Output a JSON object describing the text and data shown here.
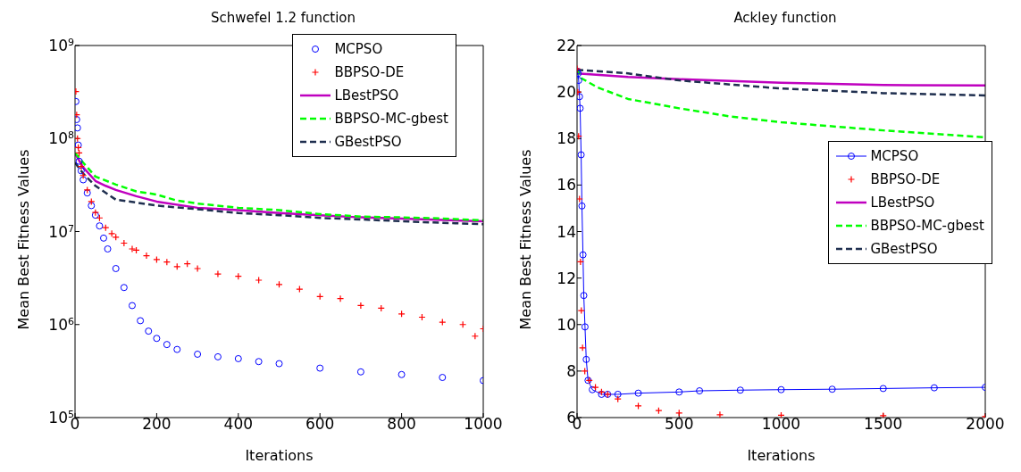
{
  "chart_data": [
    {
      "type": "line",
      "title": "Schwefel 1.2 function",
      "xlabel": "Iterations",
      "ylabel": "Mean Best Fitness Values",
      "log": "y",
      "xlim": [
        0,
        1000
      ],
      "xticks": [
        0,
        200,
        400,
        600,
        800,
        1000
      ],
      "ylim": [
        100000,
        1000000000
      ],
      "yticks": [
        {
          "value": 100000,
          "label": "10$^{5}$"
        },
        {
          "value": 1000000,
          "label": "10$^{6}$"
        },
        {
          "value": 10000000,
          "label": "10$^{7}$"
        },
        {
          "value": 100000000,
          "label": "10$^{8}$"
        },
        {
          "value": 1000000000,
          "label": "10$^{9}$"
        }
      ],
      "legend": "top right",
      "series": [
        {
          "name": "MCPSO",
          "type": "scatter",
          "marker": "circle",
          "color": "#0000ff",
          "x": [
            2,
            4,
            6,
            8,
            10,
            15,
            20,
            30,
            40,
            50,
            60,
            70,
            80,
            100,
            120,
            140,
            160,
            180,
            200,
            225,
            250,
            300,
            350,
            400,
            450,
            500,
            600,
            700,
            800,
            900,
            1000
          ],
          "values": [
            250000000,
            160000000,
            130000000,
            85000000,
            57000000,
            45000000,
            36000000,
            26000000,
            19000000,
            15000000,
            11500000,
            8500000,
            6500000,
            4000000,
            2500000,
            1600000,
            1100000,
            850000,
            710000,
            610000,
            540000,
            480000,
            450000,
            430000,
            400000,
            380000,
            340000,
            310000,
            290000,
            270000,
            250000
          ]
        },
        {
          "name": "BBPSO-DE",
          "type": "scatter",
          "marker": "cross",
          "color": "#ff0000",
          "x": [
            2,
            4,
            6,
            8,
            10,
            15,
            20,
            30,
            40,
            50,
            60,
            75,
            90,
            100,
            120,
            140,
            150,
            175,
            200,
            225,
            250,
            275,
            300,
            350,
            400,
            450,
            500,
            550,
            600,
            650,
            700,
            750,
            800,
            850,
            900,
            950,
            980,
            1000
          ],
          "values": [
            320000000,
            180000000,
            100000000,
            80000000,
            70000000,
            50000000,
            40000000,
            28000000,
            21000000,
            16000000,
            14000000,
            11000000,
            9500000,
            8700000,
            7500000,
            6500000,
            6300000,
            5500000,
            5000000,
            4700000,
            4200000,
            4500000,
            4000000,
            3500000,
            3300000,
            3000000,
            2700000,
            2400000,
            2000000,
            1900000,
            1600000,
            1500000,
            1300000,
            1200000,
            1060000,
            1000000,
            750000,
            900000
          ]
        },
        {
          "name": "LBestPSO",
          "type": "line",
          "line_style": "solid",
          "color": "#bf00bf",
          "x": [
            0,
            20,
            50,
            75,
            100,
            150,
            200,
            300,
            400,
            500,
            600,
            700,
            800,
            900,
            1000
          ],
          "values": [
            69000000,
            49000000,
            35000000,
            31000000,
            28000000,
            24000000,
            21000000,
            18000000,
            17000000,
            15800000,
            15000000,
            14200000,
            13800000,
            13300000,
            12900000
          ]
        },
        {
          "name": "BBPSO-MC-gbest",
          "type": "line",
          "line_style": "dashed",
          "color": "#00ff00",
          "x": [
            0,
            20,
            50,
            100,
            150,
            200,
            250,
            300,
            400,
            500,
            600,
            700,
            800,
            900,
            1000
          ],
          "values": [
            70000000,
            55000000,
            39000000,
            32000000,
            27000000,
            25000000,
            21500000,
            20000000,
            18000000,
            17000000,
            15400000,
            14500000,
            14200000,
            13800000,
            13200000
          ]
        },
        {
          "name": "GBestPSO",
          "type": "line",
          "line_style": "dashed",
          "color": "#1f2f4f",
          "x": [
            0,
            20,
            50,
            100,
            150,
            200,
            300,
            400,
            500,
            600,
            700,
            800,
            900,
            1000
          ],
          "values": [
            55000000,
            42000000,
            31000000,
            22000000,
            20500000,
            19000000,
            17400000,
            15800000,
            15000000,
            14000000,
            13500000,
            12900000,
            12400000,
            12000000
          ]
        }
      ]
    },
    {
      "type": "line",
      "title": "Ackley function",
      "xlabel": "Iterations",
      "ylabel": "Mean Best Fitness Values",
      "xlim": [
        0,
        2000
      ],
      "xticks": [
        0,
        500,
        1000,
        1500,
        2000
      ],
      "ylim": [
        6,
        22
      ],
      "yticks": [
        6,
        8,
        10,
        12,
        14,
        16,
        18,
        20,
        22
      ],
      "legend": "right",
      "series": [
        {
          "name": "MCPSO",
          "type": "line",
          "marker": "circle",
          "line_style": "solid",
          "color": "#0000ff",
          "x": [
            0,
            5,
            8,
            12,
            15,
            20,
            24,
            29,
            33,
            39,
            45,
            54,
            75,
            120,
            150,
            200,
            300,
            500,
            600,
            800,
            1000,
            1250,
            1500,
            1750,
            2000
          ],
          "values": [
            20.9,
            20.8,
            20.5,
            19.8,
            19.3,
            17.3,
            15.1,
            13.0,
            11.25,
            9.9,
            8.5,
            7.6,
            7.2,
            7.0,
            7.0,
            7.0,
            7.05,
            7.1,
            7.15,
            7.18,
            7.2,
            7.22,
            7.25,
            7.28,
            7.3
          ]
        },
        {
          "name": "BBPSO-DE",
          "type": "scatter",
          "marker": "cross",
          "color": "#ff0000",
          "x": [
            0,
            4,
            7.5,
            12,
            17,
            21,
            27,
            38,
            60,
            90,
            120,
            150,
            200,
            300,
            400,
            500,
            700,
            1000,
            1500,
            2000
          ],
          "values": [
            21,
            20,
            18.1,
            15.4,
            12.7,
            10.6,
            9.0,
            8.0,
            7.6,
            7.3,
            7.1,
            7.0,
            6.8,
            6.5,
            6.3,
            6.2,
            6.12,
            6.1,
            6.08,
            6.04
          ]
        },
        {
          "name": "LBestPSO",
          "type": "line",
          "line_style": "solid",
          "color": "#bf00bf",
          "x": [
            0,
            250,
            500,
            1000,
            1500,
            2000
          ],
          "values": [
            20.8,
            20.65,
            20.55,
            20.4,
            20.3,
            20.28
          ]
        },
        {
          "name": "BBPSO-MC-gbest",
          "type": "line",
          "line_style": "dashed",
          "color": "#00ff00",
          "x": [
            0,
            20,
            100,
            250,
            500,
            750,
            1000,
            1500,
            2000
          ],
          "values": [
            21,
            20.6,
            20.2,
            19.7,
            19.3,
            18.95,
            18.7,
            18.35,
            18.05
          ]
        },
        {
          "name": "GBestPSO",
          "type": "line",
          "line_style": "dashed",
          "color": "#1f2f4f",
          "x": [
            0,
            250,
            500,
            1000,
            1500,
            2000
          ],
          "values": [
            20.95,
            20.8,
            20.5,
            20.15,
            19.95,
            19.85
          ]
        }
      ]
    }
  ]
}
